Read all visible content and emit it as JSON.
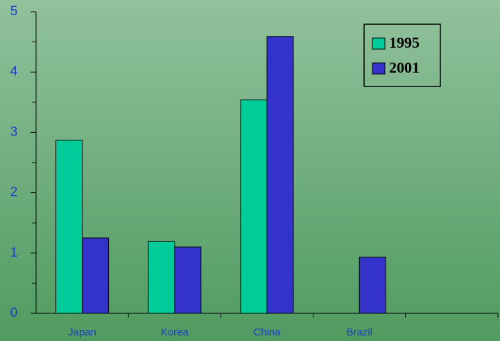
{
  "chart_data": {
    "type": "bar",
    "categories": [
      "Japan",
      "Korea",
      "China",
      "Brazil",
      null
    ],
    "series": [
      {
        "name": "1995",
        "color": "#00cc99",
        "values": [
          2.87,
          1.19,
          3.54,
          null,
          null
        ]
      },
      {
        "name": "2001",
        "color": "#3333cc",
        "values": [
          1.25,
          1.1,
          4.59,
          0.93,
          null
        ]
      }
    ],
    "ylim": [
      0,
      5
    ],
    "yticks": [
      0,
      1,
      2,
      3,
      4,
      5
    ],
    "yminor_ticks": [
      0.5,
      1.5,
      2.5,
      3.5,
      4.5
    ],
    "grid": false,
    "legend": "upper right"
  }
}
